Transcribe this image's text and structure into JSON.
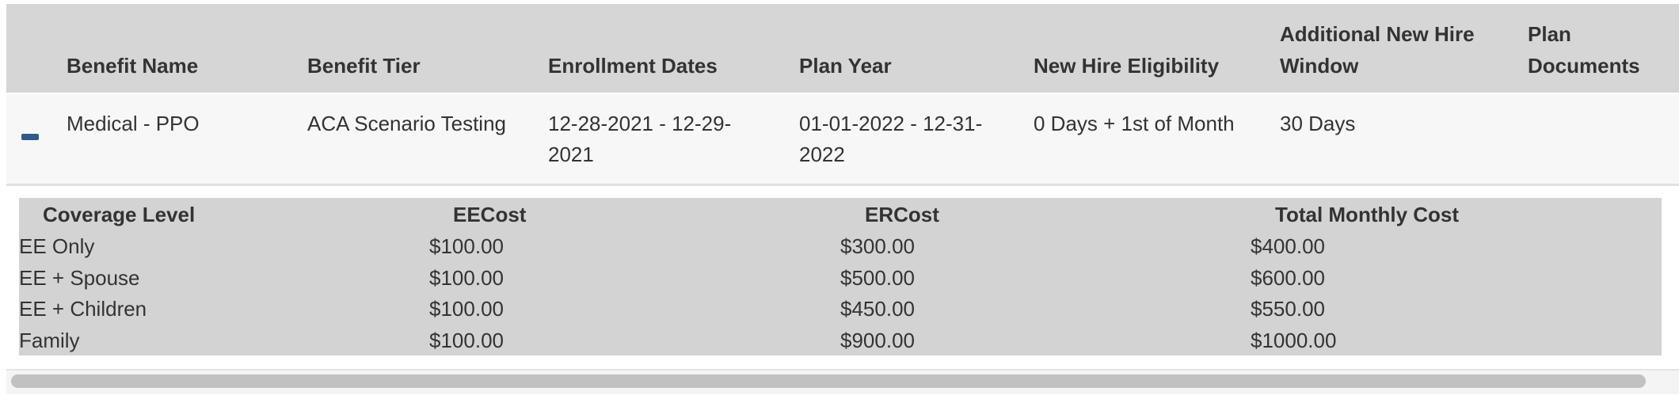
{
  "table": {
    "headers": [
      "Benefit Name",
      "Benefit Tier",
      "Enrollment Dates",
      "Plan Year",
      "New Hire Eligibility",
      "Additional New Hire Window",
      "Plan Documents"
    ],
    "rows": [
      {
        "expand_icon": "minus-icon",
        "benefit_name": "Medical - PPO",
        "benefit_tier": "ACA Scenario Testing",
        "enrollment_dates": "12-28-2021 - 12-29-2021",
        "plan_year": "01-01-2022 - 12-31-2022",
        "new_hire_eligibility": "0 Days + 1st of Month",
        "additional_window": "30 Days",
        "plan_documents": ""
      }
    ]
  },
  "coverage": {
    "headers": [
      "Coverage Level",
      "EECost",
      "ERCost",
      "Total Monthly Cost"
    ],
    "rows": [
      [
        "EE Only",
        "$100.00",
        "$300.00",
        "$400.00"
      ],
      [
        "EE + Spouse",
        "$100.00",
        "$500.00",
        "$600.00"
      ],
      [
        "EE + Children",
        "$100.00",
        "$450.00",
        "$550.00"
      ],
      [
        "Family",
        "$100.00",
        "$900.00",
        "$1000.00"
      ]
    ]
  },
  "colors": {
    "header_bg": "#d6d6d6",
    "row_bg": "#f7f7f7",
    "subtable_bg": "#d3d3d3",
    "accent": "#2f5a8a"
  }
}
